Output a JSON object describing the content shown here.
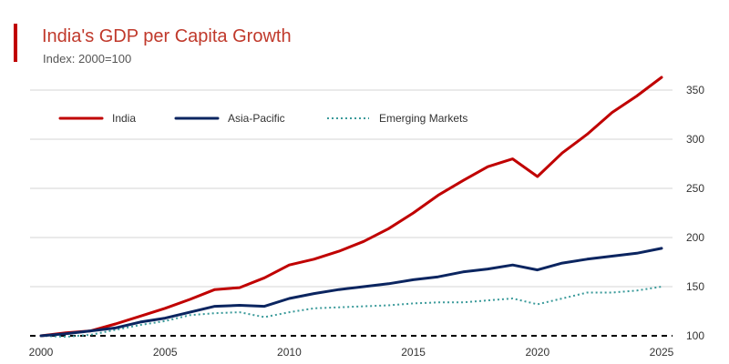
{
  "colors": {
    "accent": "#c00000",
    "title": "#c0392b",
    "grid": "#d4d4d4",
    "baseline": "#000000"
  },
  "chart_data": {
    "type": "line",
    "title": "India's GDP per Capita Growth",
    "subtitle": "Index: 2000=100",
    "xlabel": "",
    "ylabel": "",
    "x": [
      2000,
      2001,
      2002,
      2003,
      2004,
      2005,
      2006,
      2007,
      2008,
      2009,
      2010,
      2011,
      2012,
      2013,
      2014,
      2015,
      2016,
      2017,
      2018,
      2019,
      2020,
      2021,
      2022,
      2023,
      2024,
      2025
    ],
    "xticks": [
      "2000",
      "2005",
      "2010",
      "2015",
      "2020",
      "2025"
    ],
    "xlim": [
      2000,
      2025
    ],
    "yticks": [
      "100",
      "150",
      "200",
      "250",
      "300",
      "350"
    ],
    "ylim": [
      100,
      350
    ],
    "grid": true,
    "legend_position": "top-left",
    "series": [
      {
        "name": "India",
        "color": "#c00000",
        "style": "solid",
        "values": [
          100,
          103,
          105,
          112,
          120,
          128,
          137,
          147,
          149,
          159,
          172,
          178,
          186,
          196,
          209,
          225,
          243,
          258,
          272,
          280,
          262,
          286,
          305,
          327,
          344,
          363
        ]
      },
      {
        "name": "Asia-Pacific",
        "color": "#0b2560",
        "style": "solid",
        "values": [
          100,
          102,
          105,
          108,
          114,
          118,
          124,
          130,
          131,
          130,
          138,
          143,
          147,
          150,
          153,
          157,
          160,
          165,
          168,
          172,
          167,
          174,
          178,
          181,
          184,
          189
        ]
      },
      {
        "name": "Emerging Markets",
        "color": "#3a9a9a",
        "style": "dotted",
        "values": [
          100,
          99,
          101,
          106,
          111,
          115,
          121,
          123,
          124,
          119,
          124,
          128,
          129,
          130,
          131,
          133,
          134,
          134,
          136,
          138,
          132,
          138,
          144,
          144,
          146,
          150
        ]
      }
    ]
  }
}
